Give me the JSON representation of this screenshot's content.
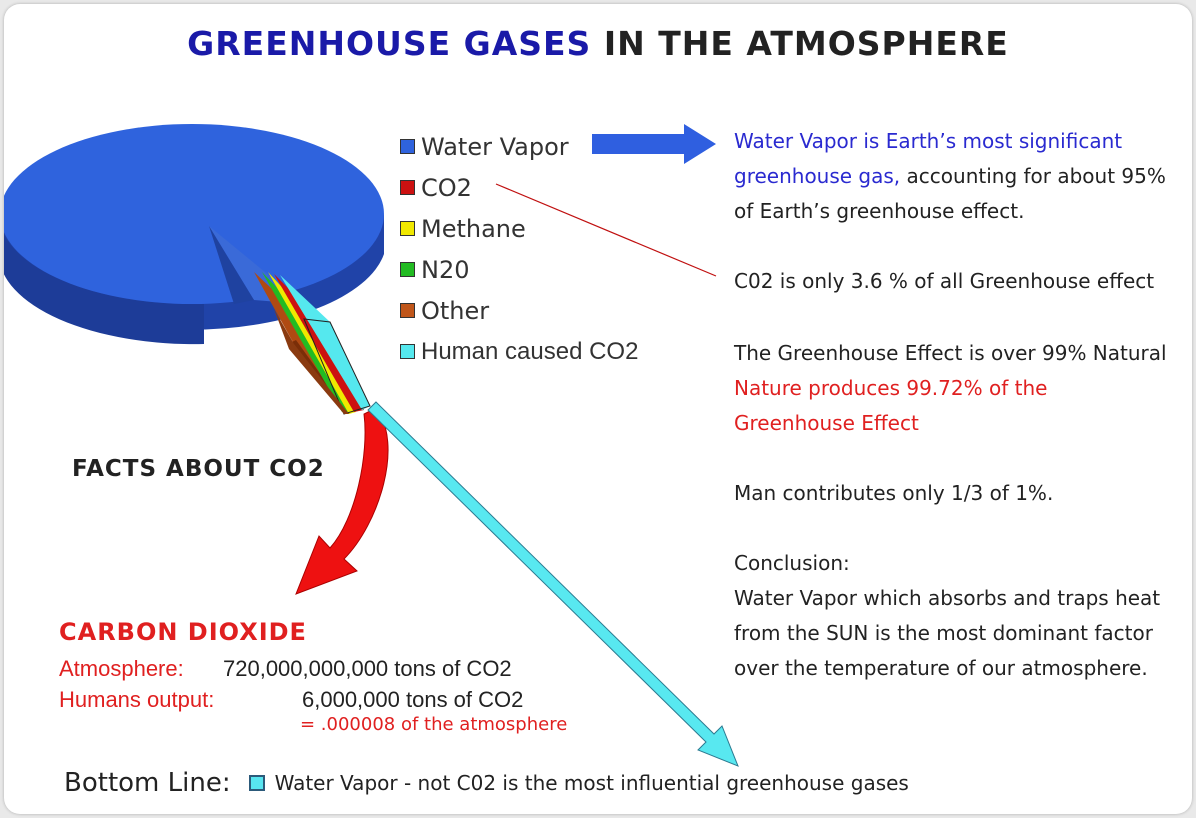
{
  "title": {
    "part1": "GREENHOUSE GASES",
    "part2": "IN THE ATMOSPHERE"
  },
  "chart_data": {
    "type": "pie",
    "title": "GREENHOUSE GASES IN THE ATMOSPHERE",
    "slices": [
      {
        "name": "Water Vapor",
        "color": "#2f63dd"
      },
      {
        "name": "CO2",
        "color": "#cc1111"
      },
      {
        "name": "Methane",
        "color": "#f0e800"
      },
      {
        "name": "N20",
        "color": "#22bb22"
      },
      {
        "name": "Other",
        "color": "#c0561a"
      },
      {
        "name": "Human caused CO2",
        "color": "#55e8ee"
      }
    ]
  },
  "legend_items": [
    {
      "label": "Water Vapor",
      "color": "#2f63dd"
    },
    {
      "label": "CO2",
      "color": "#cc1111"
    },
    {
      "label": "Methane",
      "color": "#f0e800"
    },
    {
      "label": "N20",
      "color": "#22bb22"
    },
    {
      "label": "Other",
      "color": "#c0561a"
    },
    {
      "label": "Human caused CO2",
      "color": "#55e8ee"
    }
  ],
  "right_text": {
    "wv_line1_blue": "Water Vapor is Earth’s most significant",
    "wv_line2_blue": "greenhouse gas,",
    "wv_line2_black": " accounting for about 95%",
    "wv_line3": "of Earth’s greenhouse effect.",
    "co2_line": "C02 is only 3.6 % of all Greenhouse effect",
    "natural_line": "The Greenhouse Effect is over 99% Natural",
    "nature_red1": "Nature produces 99.72% of the",
    "nature_red2": "Greenhouse Effect",
    "man_line": "Man contributes only 1/3 of 1%.",
    "conclusion_head": "Conclusion:",
    "conclusion1": "Water Vapor which absorbs and traps heat",
    "conclusion2": "from the SUN is the most dominant factor",
    "conclusion3": "over the temperature of our atmosphere."
  },
  "facts": "FACTS ABOUT CO2",
  "carbon": {
    "heading": "CARBON DIOXIDE",
    "atm_label": "Atmosphere:",
    "atm_value": "720,000,000,000 tons of CO2",
    "hum_label": "Humans output:",
    "hum_value": "6,000,000 tons of CO2",
    "equal": "= .000008 of the atmosphere"
  },
  "bottom": {
    "label": "Bottom Line:",
    "text": "Water Vapor - not C02 is the most influential greenhouse gases"
  },
  "colors": {
    "title_blue": "#1a1aa8",
    "red": "#e02020",
    "arrow_blue": "#2f5fe0",
    "cyan": "#55e8ee"
  }
}
